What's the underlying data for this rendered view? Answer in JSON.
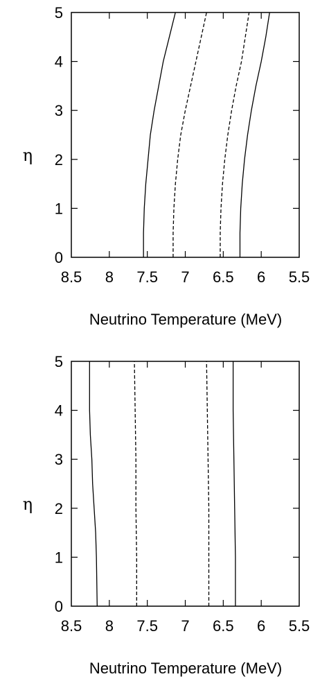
{
  "chart_data": [
    {
      "type": "line",
      "xlabel": "Neutrino Temperature (MeV)",
      "ylabel": "η",
      "xlim": [
        8.5,
        5.5
      ],
      "ylim": [
        0,
        5
      ],
      "x_reversed": true,
      "xticks": [
        "8.5",
        "8",
        "7.5",
        "7",
        "6.5",
        "6",
        "5.5"
      ],
      "yticks": [
        "0",
        "1",
        "2",
        "3",
        "4",
        "5"
      ],
      "grid": false,
      "series": [
        {
          "style": "solid",
          "points": [
            [
              7.55,
              0
            ],
            [
              7.55,
              0.5
            ],
            [
              7.54,
              1
            ],
            [
              7.52,
              1.5
            ],
            [
              7.49,
              2
            ],
            [
              7.46,
              2.5
            ],
            [
              7.41,
              3
            ],
            [
              7.35,
              3.5
            ],
            [
              7.29,
              4
            ],
            [
              7.21,
              4.5
            ],
            [
              7.13,
              5
            ]
          ]
        },
        {
          "style": "dashed",
          "points": [
            [
              7.16,
              0
            ],
            [
              7.16,
              0.5
            ],
            [
              7.15,
              1
            ],
            [
              7.13,
              1.5
            ],
            [
              7.1,
              2
            ],
            [
              7.06,
              2.5
            ],
            [
              7.0,
              3
            ],
            [
              6.93,
              3.5
            ],
            [
              6.86,
              4
            ],
            [
              6.79,
              4.5
            ],
            [
              6.72,
              5
            ]
          ]
        },
        {
          "style": "dashed",
          "points": [
            [
              6.54,
              0
            ],
            [
              6.54,
              0.5
            ],
            [
              6.53,
              1
            ],
            [
              6.51,
              1.5
            ],
            [
              6.48,
              2
            ],
            [
              6.44,
              2.5
            ],
            [
              6.39,
              3
            ],
            [
              6.33,
              3.5
            ],
            [
              6.26,
              4
            ],
            [
              6.21,
              4.5
            ],
            [
              6.16,
              5
            ]
          ]
        },
        {
          "style": "solid",
          "points": [
            [
              6.28,
              0
            ],
            [
              6.28,
              0.5
            ],
            [
              6.27,
              1
            ],
            [
              6.25,
              1.5
            ],
            [
              6.22,
              2
            ],
            [
              6.18,
              2.5
            ],
            [
              6.13,
              3
            ],
            [
              6.07,
              3.5
            ],
            [
              6.0,
              4
            ],
            [
              5.94,
              4.5
            ],
            [
              5.89,
              5
            ]
          ]
        }
      ]
    },
    {
      "type": "line",
      "xlabel": "Neutrino Temperature (MeV)",
      "ylabel": "η",
      "xlim": [
        8.5,
        5.5
      ],
      "ylim": [
        0,
        5
      ],
      "x_reversed": true,
      "xticks": [
        "8.5",
        "8",
        "7.5",
        "7",
        "6.5",
        "6",
        "5.5"
      ],
      "yticks": [
        "0",
        "1",
        "2",
        "3",
        "4",
        "5"
      ],
      "grid": false,
      "series": [
        {
          "style": "solid",
          "points": [
            [
              8.16,
              0
            ],
            [
              8.17,
              1
            ],
            [
              8.18,
              1.5
            ],
            [
              8.2,
              2
            ],
            [
              8.22,
              2.5
            ],
            [
              8.23,
              3
            ],
            [
              8.25,
              3.5
            ],
            [
              8.26,
              4
            ],
            [
              8.26,
              4.5
            ],
            [
              8.26,
              5
            ]
          ]
        },
        {
          "style": "dashed",
          "points": [
            [
              7.64,
              0
            ],
            [
              7.64,
              1
            ],
            [
              7.65,
              2
            ],
            [
              7.65,
              3
            ],
            [
              7.66,
              4
            ],
            [
              7.67,
              5
            ]
          ]
        },
        {
          "style": "dashed",
          "points": [
            [
              6.69,
              0
            ],
            [
              6.69,
              1
            ],
            [
              6.69,
              2
            ],
            [
              6.7,
              3
            ],
            [
              6.71,
              4
            ],
            [
              6.72,
              5
            ]
          ]
        },
        {
          "style": "solid",
          "points": [
            [
              6.34,
              0
            ],
            [
              6.34,
              1
            ],
            [
              6.35,
              2
            ],
            [
              6.36,
              3
            ],
            [
              6.37,
              4
            ],
            [
              6.37,
              5
            ]
          ]
        }
      ]
    }
  ]
}
